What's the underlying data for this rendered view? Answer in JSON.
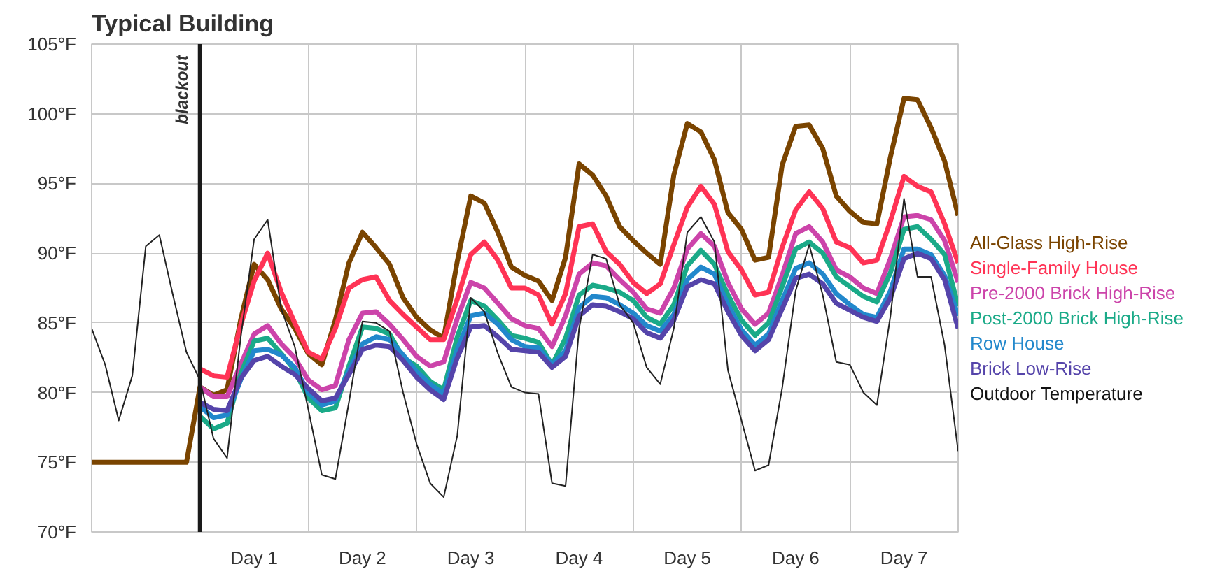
{
  "chart_data": {
    "type": "line",
    "title": "Typical Building",
    "legend": "right",
    "grid": true,
    "line_style": "solid",
    "marker": "none",
    "categories": [
      null,
      null,
      null,
      null,
      null,
      null,
      null,
      null,
      null,
      null,
      null,
      null,
      "Day 1",
      null,
      null,
      null,
      null,
      null,
      null,
      null,
      "Day 2",
      null,
      null,
      null,
      null,
      null,
      null,
      null,
      "Day 3",
      null,
      null,
      null,
      null,
      null,
      null,
      null,
      "Day 4",
      null,
      null,
      null,
      null,
      null,
      null,
      null,
      "Day 5",
      null,
      null,
      null,
      null,
      null,
      null,
      null,
      "Day 6",
      null,
      null,
      null,
      null,
      null,
      null,
      null,
      "Day 7",
      null,
      null,
      null,
      null
    ],
    "ylim": [
      70,
      105
    ],
    "yticks": [
      {
        "value": 70,
        "label": "70°F"
      },
      {
        "value": 75,
        "label": "75°F"
      },
      {
        "value": 80,
        "label": "80°F"
      },
      {
        "value": 85,
        "label": "85°F"
      },
      {
        "value": 90,
        "label": "90°F"
      },
      {
        "value": 95,
        "label": "95°F"
      },
      {
        "value": 100,
        "label": "100°F"
      },
      {
        "value": 105,
        "label": "105°F"
      }
    ],
    "annotations": [
      "blackout"
    ],
    "series": [
      {
        "name": "All-Glass High-Rise",
        "color": "#7a4400",
        "values": [
          75,
          75,
          75,
          75,
          75,
          75,
          75,
          75,
          80.4,
          79.8,
          80.2,
          85.2,
          89.2,
          88.1,
          86.0,
          84.6,
          82.8,
          82.0,
          85.2,
          89.3,
          91.5,
          90.4,
          89.2,
          86.8,
          85.4,
          84.5,
          83.9,
          89.4,
          94.1,
          93.6,
          91.5,
          89.0,
          88.4,
          88.0,
          86.6,
          89.7,
          96.4,
          95.6,
          94.1,
          91.9,
          90.9,
          90.0,
          89.2,
          95.6,
          99.3,
          98.7,
          96.7,
          92.9,
          91.7,
          89.5,
          89.7,
          96.3,
          99.1,
          99.2,
          97.5,
          94.1,
          93.0,
          92.2,
          92.1,
          96.9,
          101.1,
          101.0,
          99.0,
          96.6,
          92.7
        ]
      },
      {
        "name": "Single-Family House",
        "color": "#ff3355",
        "values": [
          null,
          null,
          null,
          null,
          null,
          null,
          null,
          null,
          81.7,
          81.2,
          81.1,
          84.8,
          88.0,
          90.0,
          87.2,
          85.0,
          82.9,
          82.4,
          84.6,
          87.5,
          88.1,
          88.3,
          86.6,
          85.6,
          84.7,
          83.8,
          83.8,
          86.7,
          89.9,
          90.8,
          89.5,
          87.5,
          87.5,
          87.0,
          84.9,
          87.1,
          91.9,
          92.1,
          90.1,
          89.2,
          87.9,
          87.1,
          87.8,
          90.6,
          93.3,
          94.8,
          93.5,
          90.1,
          88.8,
          87.0,
          87.2,
          90.4,
          93.1,
          94.4,
          93.2,
          90.8,
          90.4,
          89.3,
          89.5,
          92.3,
          95.5,
          94.8,
          94.4,
          92.1,
          89.3
        ]
      },
      {
        "name": "Pre-2000 Brick High-Rise",
        "color": "#cc44aa",
        "values": [
          null,
          null,
          null,
          null,
          null,
          null,
          null,
          null,
          80.4,
          79.7,
          79.7,
          82.0,
          84.2,
          84.8,
          83.5,
          82.5,
          80.9,
          80.2,
          80.5,
          83.8,
          85.7,
          85.8,
          84.9,
          83.8,
          82.6,
          81.9,
          82.2,
          85.3,
          87.9,
          87.5,
          86.4,
          85.3,
          84.8,
          84.6,
          83.3,
          85.5,
          88.5,
          89.3,
          89.1,
          88.1,
          87.2,
          86.0,
          85.7,
          87.5,
          90.3,
          91.4,
          90.5,
          87.9,
          86.0,
          84.9,
          85.7,
          88.4,
          91.4,
          91.9,
          90.8,
          88.8,
          88.3,
          87.5,
          87.1,
          89.6,
          92.6,
          92.7,
          92.4,
          90.9,
          87.9
        ]
      },
      {
        "name": "Post-2000 Brick High-Rise",
        "color": "#1aaa88",
        "values": [
          null,
          null,
          null,
          null,
          null,
          null,
          null,
          null,
          78.3,
          77.4,
          77.8,
          81.3,
          83.7,
          83.9,
          82.8,
          81.6,
          79.6,
          78.7,
          78.9,
          81.9,
          84.7,
          84.6,
          84.2,
          82.5,
          81.9,
          80.8,
          80.2,
          84.0,
          86.6,
          86.2,
          85.2,
          84.1,
          83.9,
          83.6,
          82.0,
          83.9,
          87.0,
          87.7,
          87.5,
          87.2,
          86.6,
          85.4,
          84.9,
          86.3,
          89.1,
          90.2,
          89.2,
          87.0,
          85.2,
          84.1,
          85.0,
          87.6,
          90.3,
          90.8,
          90.0,
          88.3,
          87.6,
          86.9,
          86.5,
          88.6,
          91.7,
          91.9,
          91.0,
          89.9,
          86.2
        ]
      },
      {
        "name": "Row House",
        "color": "#2288cc",
        "values": [
          null,
          null,
          null,
          null,
          null,
          null,
          null,
          null,
          79.0,
          78.2,
          78.4,
          80.9,
          83.0,
          83.1,
          82.7,
          81.8,
          80.0,
          79.1,
          79.4,
          81.6,
          83.5,
          84.0,
          83.8,
          82.7,
          81.5,
          80.6,
          79.9,
          83.1,
          85.5,
          85.7,
          84.9,
          83.8,
          83.3,
          83.2,
          82.0,
          83.0,
          86.1,
          86.9,
          86.8,
          86.3,
          85.7,
          84.8,
          84.4,
          85.6,
          88.1,
          89.0,
          88.5,
          86.3,
          84.5,
          83.4,
          84.2,
          86.6,
          88.9,
          89.3,
          88.5,
          87.1,
          86.3,
          85.6,
          85.4,
          87.3,
          90.3,
          90.3,
          89.9,
          88.4,
          85.5
        ]
      },
      {
        "name": "Brick Low-Rise",
        "color": "#5544aa",
        "values": [
          null,
          null,
          null,
          null,
          null,
          null,
          null,
          null,
          79.3,
          78.8,
          78.7,
          81.0,
          82.3,
          82.6,
          81.9,
          81.3,
          80.3,
          79.4,
          79.6,
          81.3,
          83.1,
          83.4,
          83.3,
          82.3,
          81.1,
          80.2,
          79.5,
          82.5,
          84.7,
          84.8,
          84.0,
          83.1,
          83.0,
          82.9,
          81.8,
          82.6,
          85.5,
          86.3,
          86.2,
          85.8,
          85.3,
          84.3,
          83.9,
          85.2,
          87.6,
          88.1,
          87.8,
          85.8,
          84.1,
          83.0,
          83.8,
          86.0,
          88.2,
          88.5,
          87.8,
          86.4,
          85.9,
          85.4,
          85.1,
          86.8,
          89.6,
          90.0,
          89.6,
          88.1,
          84.6
        ]
      },
      {
        "name": "Outdoor Temperature",
        "color": "#222222",
        "values": [
          84.6,
          82.0,
          78.0,
          81.2,
          90.5,
          91.3,
          87.0,
          82.9,
          80.9,
          76.7,
          75.3,
          83.9,
          91.0,
          92.4,
          86.0,
          83.3,
          78.8,
          74.1,
          73.8,
          79.3,
          85.1,
          85.0,
          84.4,
          80.0,
          76.3,
          73.5,
          72.5,
          76.9,
          86.8,
          85.8,
          82.8,
          80.4,
          80.0,
          79.9,
          73.5,
          73.3,
          84.6,
          89.9,
          89.6,
          86.3,
          85.0,
          81.8,
          80.6,
          84.6,
          91.5,
          92.6,
          90.8,
          81.6,
          78.0,
          74.4,
          74.8,
          80.3,
          87.3,
          90.6,
          87.0,
          82.2,
          82.0,
          80.0,
          79.1,
          85.5,
          93.9,
          88.3,
          88.3,
          83.4,
          75.8
        ]
      }
    ]
  }
}
